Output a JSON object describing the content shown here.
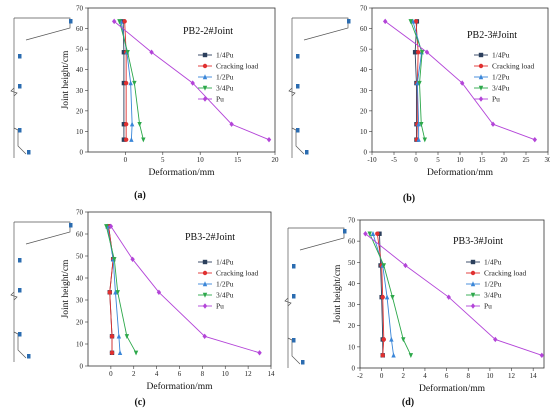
{
  "chart_data": [
    {
      "type": "line",
      "title": "PB2-2#Joint",
      "panel_label": "(a)",
      "xlabel": "Deformation/mm",
      "ylabel": "Joint height/cm",
      "xlim": [
        -5,
        20
      ],
      "ylim": [
        0,
        70
      ],
      "xticks": [
        0,
        5,
        10,
        15,
        20
      ],
      "yticks": [
        0,
        10,
        20,
        30,
        40,
        50,
        60,
        70
      ],
      "legend_position": "top-right",
      "series": [
        {
          "name": "1/4Pu",
          "color": "#2b3f5c",
          "marker": "square",
          "points": [
            [
              -0.2,
              6
            ],
            [
              -0.2,
              13.5
            ],
            [
              -0.2,
              33.5
            ],
            [
              -0.2,
              48.5
            ],
            [
              -0.3,
              63.5
            ]
          ]
        },
        {
          "name": "Cracking load",
          "color": "#e03030",
          "marker": "circle",
          "points": [
            [
              0.1,
              6
            ],
            [
              0.1,
              13.5
            ],
            [
              0.1,
              33.5
            ],
            [
              0.1,
              48.5
            ],
            [
              -0.1,
              63.5
            ]
          ]
        },
        {
          "name": "1/2Pu",
          "color": "#3a86d8",
          "marker": "triangle",
          "points": [
            [
              0.8,
              6
            ],
            [
              0.9,
              13.5
            ],
            [
              0.7,
              33.5
            ],
            [
              0.2,
              48.5
            ],
            [
              -0.6,
              63.5
            ]
          ]
        },
        {
          "name": "3/4Pu",
          "color": "#2ca84a",
          "marker": "triangle-down",
          "points": [
            [
              2.4,
              6
            ],
            [
              1.9,
              13.5
            ],
            [
              1.2,
              33.5
            ],
            [
              0.3,
              48.5
            ],
            [
              -0.8,
              63.5
            ]
          ]
        },
        {
          "name": "Pu",
          "color": "#b344d8",
          "marker": "diamond",
          "points": [
            [
              19.2,
              6
            ],
            [
              14.2,
              13.5
            ],
            [
              9.0,
              33.5
            ],
            [
              3.5,
              48.5
            ],
            [
              -1.5,
              63.5
            ]
          ]
        }
      ]
    },
    {
      "type": "line",
      "title": "PB2-3#Joint",
      "panel_label": "(b)",
      "xlabel": "Deformation/mm",
      "ylabel": "",
      "xlim": [
        -10,
        30
      ],
      "ylim": [
        0,
        70
      ],
      "xticks": [
        -10,
        -5,
        0,
        5,
        10,
        15,
        20,
        25,
        30
      ],
      "yticks": [
        0,
        10,
        20,
        30,
        40,
        50,
        60,
        70
      ],
      "legend_position": "top-right",
      "series": [
        {
          "name": "1/4Pu",
          "color": "#2b3f5c",
          "marker": "square",
          "points": [
            [
              0.1,
              6
            ],
            [
              0.1,
              13.5
            ],
            [
              0.1,
              33.5
            ],
            [
              -0.2,
              48.5
            ],
            [
              0.2,
              63.5
            ]
          ]
        },
        {
          "name": "Cracking load",
          "color": "#e03030",
          "marker": "circle",
          "points": [
            [
              0.2,
              6
            ],
            [
              0.3,
              13.5
            ],
            [
              0.3,
              33.5
            ],
            [
              0.5,
              48.5
            ],
            [
              0.0,
              63.5
            ]
          ]
        },
        {
          "name": "1/2Pu",
          "color": "#3a86d8",
          "marker": "triangle",
          "points": [
            [
              0.6,
              6
            ],
            [
              0.6,
              13.5
            ],
            [
              0.3,
              33.5
            ],
            [
              1.3,
              48.5
            ],
            [
              -0.7,
              63.5
            ]
          ]
        },
        {
          "name": "3/4Pu",
          "color": "#2ca84a",
          "marker": "triangle-down",
          "points": [
            [
              2.0,
              6
            ],
            [
              1.2,
              13.5
            ],
            [
              0.8,
              33.5
            ],
            [
              1.4,
              48.5
            ],
            [
              -1.2,
              63.5
            ]
          ]
        },
        {
          "name": "Pu",
          "color": "#b344d8",
          "marker": "diamond",
          "points": [
            [
              27.0,
              6
            ],
            [
              17.5,
              13.5
            ],
            [
              10.5,
              33.5
            ],
            [
              2.5,
              48.5
            ],
            [
              -7.0,
              63.5
            ]
          ]
        }
      ]
    },
    {
      "type": "line",
      "title": "PB3-2#Joint",
      "panel_label": "(c)",
      "xlabel": "Deformation/mm",
      "ylabel": "Joint height/cm",
      "xlim": [
        -2,
        14
      ],
      "ylim": [
        0,
        70
      ],
      "xticks": [
        0,
        2,
        4,
        6,
        8,
        10,
        12,
        14
      ],
      "yticks": [
        0,
        10,
        20,
        30,
        40,
        50,
        60,
        70
      ],
      "legend_position": "top-right",
      "series": [
        {
          "name": "1/4Pu",
          "color": "#2b3f5c",
          "marker": "square",
          "points": [
            [
              0.1,
              6
            ],
            [
              0.1,
              13.5
            ],
            [
              -0.1,
              33.5
            ],
            [
              0.2,
              48.5
            ],
            [
              -0.2,
              63.5
            ]
          ]
        },
        {
          "name": "Cracking load",
          "color": "#e03030",
          "marker": "circle",
          "points": [
            [
              0.1,
              6
            ],
            [
              0.1,
              13.5
            ],
            [
              -0.1,
              33.5
            ],
            [
              0.2,
              48.5
            ],
            [
              -0.2,
              63.5
            ]
          ]
        },
        {
          "name": "1/2Pu",
          "color": "#3a86d8",
          "marker": "triangle",
          "points": [
            [
              0.8,
              6
            ],
            [
              0.7,
              13.5
            ],
            [
              0.4,
              33.5
            ],
            [
              0.2,
              48.5
            ],
            [
              -0.3,
              63.5
            ]
          ]
        },
        {
          "name": "3/4Pu",
          "color": "#2ca84a",
          "marker": "triangle-down",
          "points": [
            [
              2.2,
              6
            ],
            [
              1.4,
              13.5
            ],
            [
              0.6,
              33.5
            ],
            [
              0.3,
              48.5
            ],
            [
              -0.4,
              63.5
            ]
          ]
        },
        {
          "name": "Pu",
          "color": "#b344d8",
          "marker": "diamond",
          "points": [
            [
              13.0,
              6
            ],
            [
              8.2,
              13.5
            ],
            [
              4.2,
              33.5
            ],
            [
              1.9,
              48.5
            ],
            [
              0.0,
              63.5
            ]
          ]
        }
      ]
    },
    {
      "type": "line",
      "title": "PB3-3#Joint",
      "panel_label": "(d)",
      "xlabel": "Deformation/mm",
      "ylabel": "Joint height/cm",
      "xlim": [
        -2,
        15
      ],
      "ylim": [
        0,
        70
      ],
      "xticks": [
        -2,
        0,
        2,
        4,
        6,
        8,
        10,
        12,
        14
      ],
      "yticks": [
        0,
        10,
        20,
        30,
        40,
        50,
        60,
        70
      ],
      "legend_position": "top-right",
      "series": [
        {
          "name": "1/4Pu",
          "color": "#2b3f5c",
          "marker": "square",
          "points": [
            [
              0.1,
              6
            ],
            [
              0.1,
              13.5
            ],
            [
              0.0,
              33.5
            ],
            [
              -0.1,
              48.5
            ],
            [
              -0.2,
              63.5
            ]
          ]
        },
        {
          "name": "Cracking load",
          "color": "#e03030",
          "marker": "circle",
          "points": [
            [
              0.1,
              6
            ],
            [
              0.2,
              13.5
            ],
            [
              0.1,
              33.5
            ],
            [
              0.0,
              48.5
            ],
            [
              -0.4,
              63.5
            ]
          ]
        },
        {
          "name": "1/2Pu",
          "color": "#3a86d8",
          "marker": "triangle",
          "points": [
            [
              1.1,
              6
            ],
            [
              0.9,
              13.5
            ],
            [
              0.5,
              33.5
            ],
            [
              0.1,
              48.5
            ],
            [
              -0.8,
              63.5
            ]
          ]
        },
        {
          "name": "3/4Pu",
          "color": "#2ca84a",
          "marker": "triangle-down",
          "points": [
            [
              2.7,
              6
            ],
            [
              2.0,
              13.5
            ],
            [
              1.0,
              33.5
            ],
            [
              0.2,
              48.5
            ],
            [
              -1.1,
              63.5
            ]
          ]
        },
        {
          "name": "Pu",
          "color": "#b344d8",
          "marker": "diamond",
          "points": [
            [
              14.8,
              6
            ],
            [
              10.5,
              13.5
            ],
            [
              6.2,
              33.5
            ],
            [
              2.2,
              48.5
            ],
            [
              -1.5,
              63.5
            ]
          ]
        }
      ]
    }
  ]
}
